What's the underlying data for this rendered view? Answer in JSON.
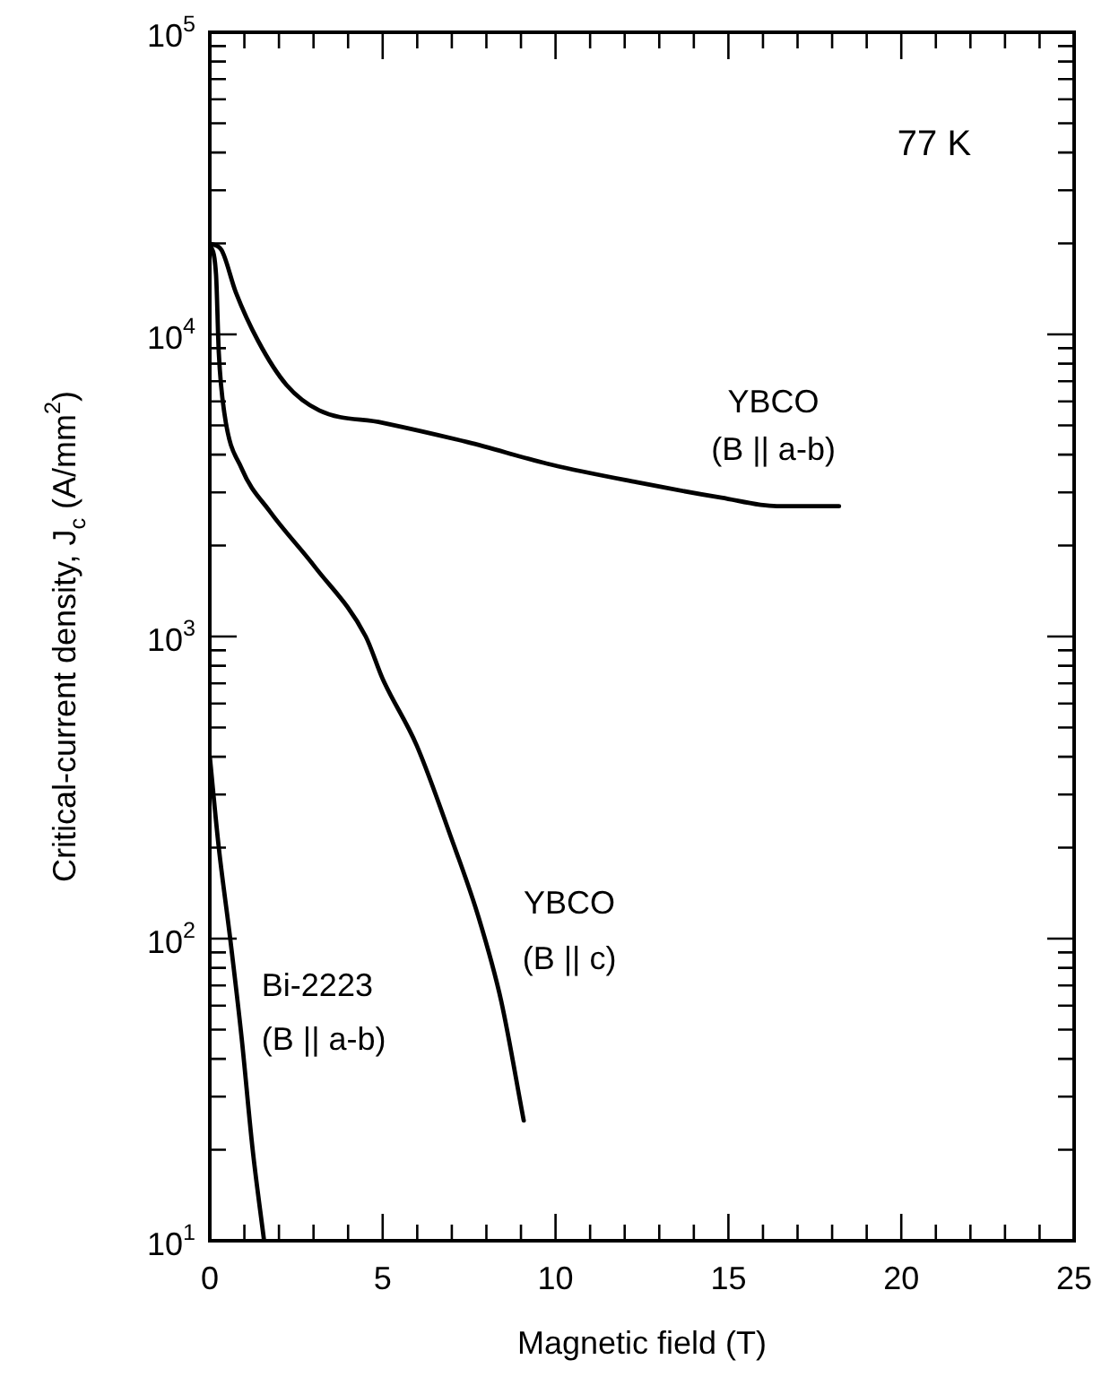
{
  "chart_data": {
    "type": "line",
    "xlabel": "Magnetic field (T)",
    "ylabel": "Critical-current density, J$_{c}$ (A/mm$^{2}$)",
    "annotations": [
      "77 K"
    ],
    "log": "y",
    "grid": false,
    "legend": false,
    "marker": "none",
    "line_style": "solid",
    "xlim": [
      0,
      25
    ],
    "ylim": [
      10,
      100000
    ],
    "xticks": [
      0,
      {
        "value": 1,
        "label": null
      },
      {
        "value": 2,
        "label": null
      },
      {
        "value": 3,
        "label": null
      },
      {
        "value": 4,
        "label": null
      },
      5,
      {
        "value": 6,
        "label": null
      },
      {
        "value": 7,
        "label": null
      },
      {
        "value": 8,
        "label": null
      },
      {
        "value": 9,
        "label": null
      },
      10,
      {
        "value": 11,
        "label": null
      },
      {
        "value": 12,
        "label": null
      },
      {
        "value": 13,
        "label": null
      },
      {
        "value": 14,
        "label": null
      },
      15,
      {
        "value": 16,
        "label": null
      },
      {
        "value": 17,
        "label": null
      },
      {
        "value": 18,
        "label": null
      },
      {
        "value": 19,
        "label": null
      },
      20,
      {
        "value": 21,
        "label": null
      },
      {
        "value": 22,
        "label": null
      },
      {
        "value": 23,
        "label": null
      },
      {
        "value": 24,
        "label": null
      },
      25
    ],
    "yticks": [
      {
        "value": 10,
        "label": "10$^{1}$"
      },
      {
        "value": 20,
        "label": null
      },
      {
        "value": 30,
        "label": null
      },
      {
        "value": 40,
        "label": null
      },
      {
        "value": 50,
        "label": null
      },
      {
        "value": 60,
        "label": null
      },
      {
        "value": 70,
        "label": null
      },
      {
        "value": 80,
        "label": null
      },
      {
        "value": 90,
        "label": null
      },
      {
        "value": 100,
        "label": "10$^{2}$"
      },
      {
        "value": 200,
        "label": null
      },
      {
        "value": 300,
        "label": null
      },
      {
        "value": 400,
        "label": null
      },
      {
        "value": 500,
        "label": null
      },
      {
        "value": 600,
        "label": null
      },
      {
        "value": 700,
        "label": null
      },
      {
        "value": 800,
        "label": null
      },
      {
        "value": 900,
        "label": null
      },
      {
        "value": 1000,
        "label": "10$^{3}$"
      },
      {
        "value": 2000,
        "label": null
      },
      {
        "value": 3000,
        "label": null
      },
      {
        "value": 4000,
        "label": null
      },
      {
        "value": 5000,
        "label": null
      },
      {
        "value": 6000,
        "label": null
      },
      {
        "value": 7000,
        "label": null
      },
      {
        "value": 8000,
        "label": null
      },
      {
        "value": 9000,
        "label": null
      },
      {
        "value": 10000,
        "label": "10$^{4}$"
      },
      {
        "value": 20000,
        "label": null
      },
      {
        "value": 30000,
        "label": null
      },
      {
        "value": 40000,
        "label": null
      },
      {
        "value": 50000,
        "label": null
      },
      {
        "value": 60000,
        "label": null
      },
      {
        "value": 70000,
        "label": null
      },
      {
        "value": 80000,
        "label": null
      },
      {
        "value": 90000,
        "label": null
      },
      {
        "value": 100000,
        "label": "10$^{5}$"
      }
    ],
    "series": [
      {
        "name": "YBCO (B || a-b)",
        "color": "#000000",
        "x": [
          0,
          0.34,
          0.75,
          1.4,
          2.22,
          3.17,
          5.0,
          7.45,
          9.9,
          12.35,
          14.8,
          16.4,
          18.2
        ],
        "values": [
          20000,
          19000,
          13800,
          9500,
          6800,
          5600,
          5100,
          4400,
          3700,
          3240,
          2880,
          2700,
          2700
        ]
      },
      {
        "name": "YBCO (B || c)",
        "color": "#000000",
        "x": [
          0,
          0.18,
          0.26,
          0.42,
          0.92,
          1.73,
          3.04,
          4.51,
          5.0,
          5.98,
          6.96,
          7.78,
          8.43,
          9.08
        ],
        "values": [
          20000,
          15800,
          8700,
          5500,
          3600,
          2600,
          1700,
          1000,
          724,
          437,
          219,
          117,
          62,
          25
        ]
      },
      {
        "name": "Bi-2223 (B || a-b)",
        "color": "#000000",
        "x": [
          0,
          0.26,
          0.59,
          0.92,
          1.24,
          1.57
        ],
        "values": [
          400,
          200,
          100,
          47,
          20,
          10
        ]
      }
    ]
  }
}
